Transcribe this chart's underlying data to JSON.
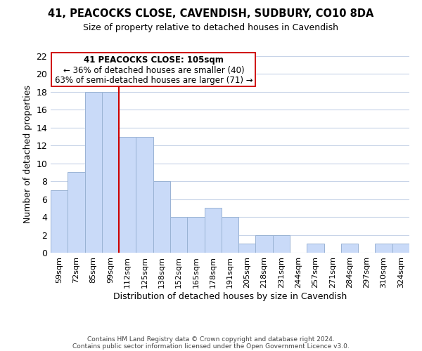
{
  "title": "41, PEACOCKS CLOSE, CAVENDISH, SUDBURY, CO10 8DA",
  "subtitle": "Size of property relative to detached houses in Cavendish",
  "xlabel": "Distribution of detached houses by size in Cavendish",
  "ylabel": "Number of detached properties",
  "bar_labels": [
    "59sqm",
    "72sqm",
    "85sqm",
    "99sqm",
    "112sqm",
    "125sqm",
    "138sqm",
    "152sqm",
    "165sqm",
    "178sqm",
    "191sqm",
    "205sqm",
    "218sqm",
    "231sqm",
    "244sqm",
    "257sqm",
    "271sqm",
    "284sqm",
    "297sqm",
    "310sqm",
    "324sqm"
  ],
  "bar_values": [
    7,
    9,
    18,
    18,
    13,
    13,
    8,
    4,
    4,
    5,
    4,
    1,
    2,
    2,
    0,
    1,
    0,
    1,
    0,
    1,
    1
  ],
  "bar_color": "#c9daf8",
  "bar_edge_color": "#9ab3d4",
  "ylim": [
    0,
    22
  ],
  "yticks": [
    0,
    2,
    4,
    6,
    8,
    10,
    12,
    14,
    16,
    18,
    20,
    22
  ],
  "vline_x": 3.5,
  "vline_color": "#cc0000",
  "annotation_title": "41 PEACOCKS CLOSE: 105sqm",
  "annotation_line1": "← 36% of detached houses are smaller (40)",
  "annotation_line2": "63% of semi-detached houses are larger (71) →",
  "footer1": "Contains HM Land Registry data © Crown copyright and database right 2024.",
  "footer2": "Contains public sector information licensed under the Open Government Licence v3.0.",
  "background_color": "#ffffff",
  "grid_color": "#c8d4e8"
}
